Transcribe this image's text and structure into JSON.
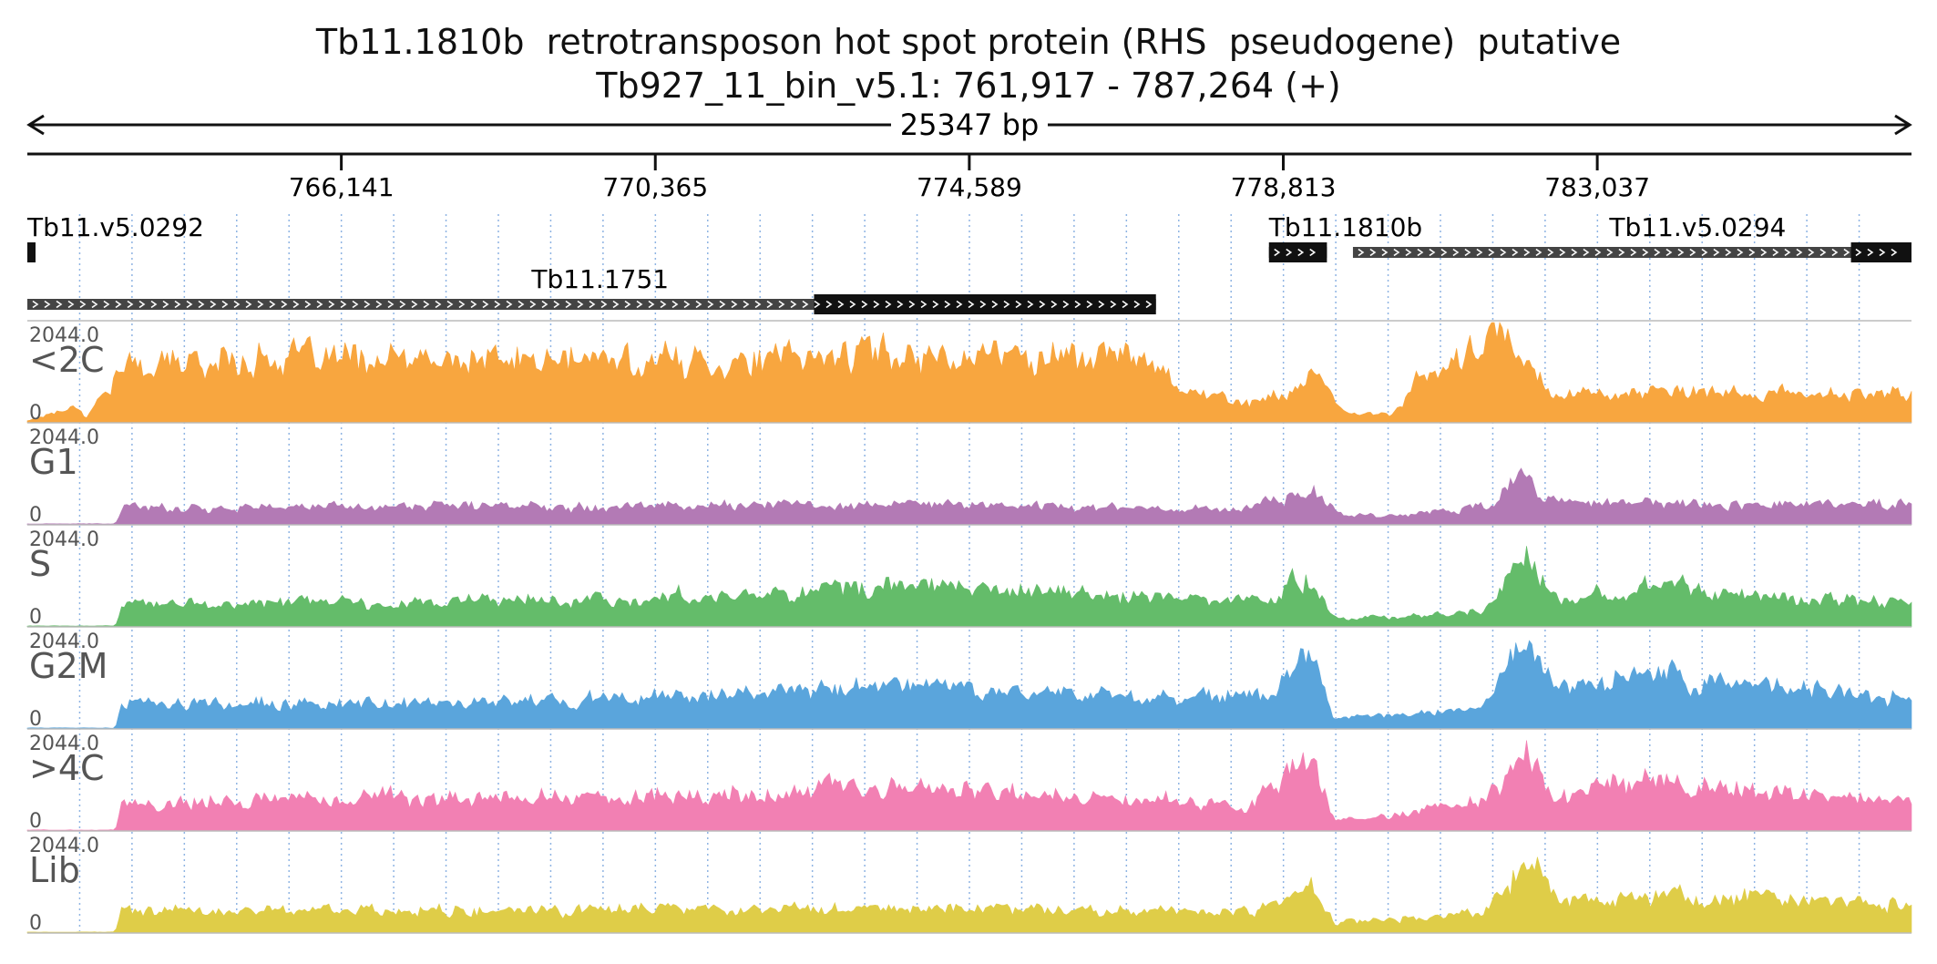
{
  "title": "Tb11.1810b  retrotransposon hot spot protein (RHS  pseudogene)  putative",
  "subtitle": "Tb927_11_bin_v5.1: 761,917 - 787,264 (+)",
  "chart_data": {
    "type": "area",
    "region_start": 761917,
    "region_end": 787264,
    "length_label": "25347 bp",
    "x_ticks": [
      766141,
      770365,
      774589,
      778813,
      783037
    ],
    "x_tick_labels": [
      "766,141",
      "770,365",
      "774,589",
      "778,813",
      "783,037"
    ],
    "genes": [
      {
        "name": "Tb11.v5.0292",
        "start": 761917,
        "end": 761990,
        "cds_start": 761917,
        "cds_end": 761990,
        "row": 0,
        "label_pos": 761917
      },
      {
        "name": "Tb11.1810b",
        "start": 778620,
        "end": 779400,
        "cds_start": 778620,
        "cds_end": 779400,
        "row": 0,
        "label_pos": 778620
      },
      {
        "name": "Tb11.v5.0294",
        "start": 779750,
        "end": 787264,
        "cds_start": 786450,
        "cds_end": 787264,
        "row": 0,
        "label_pos": 783200
      },
      {
        "name": "Tb11.1751",
        "start": 761917,
        "end": 777100,
        "cds_start": 772500,
        "cds_end": 777100,
        "row": 1,
        "label_pos": 768700
      }
    ],
    "tracks": [
      {
        "name": "<2C",
        "max_label": "2044.0",
        "zero_label": "0",
        "color": "#f8a63f",
        "baseline": 600,
        "noise": 0.35,
        "profile": [
          [
            761917,
            0.02
          ],
          [
            762600,
            0.18
          ],
          [
            762700,
            0.05
          ],
          [
            763200,
            0.55
          ],
          [
            765000,
            0.65
          ],
          [
            767500,
            0.6
          ],
          [
            768000,
            0.62
          ],
          [
            772000,
            0.62
          ],
          [
            773000,
            0.7
          ],
          [
            777000,
            0.66
          ],
          [
            777600,
            0.3
          ],
          [
            778400,
            0.2
          ],
          [
            778700,
            0.25
          ],
          [
            779200,
            0.45
          ],
          [
            779700,
            0.08
          ],
          [
            780300,
            0.1
          ],
          [
            780600,
            0.4
          ],
          [
            781200,
            0.6
          ],
          [
            781700,
            0.9
          ],
          [
            782200,
            0.5
          ],
          [
            782500,
            0.3
          ],
          [
            787264,
            0.28
          ]
        ]
      },
      {
        "name": "G1",
        "max_label": "2044.0",
        "zero_label": "0",
        "color": "#b37ab5",
        "baseline": 0,
        "noise": 0.35,
        "profile": [
          [
            761917,
            0.01
          ],
          [
            763100,
            0.01
          ],
          [
            763200,
            0.17
          ],
          [
            768000,
            0.19
          ],
          [
            772000,
            0.2
          ],
          [
            775000,
            0.2
          ],
          [
            777500,
            0.16
          ],
          [
            778300,
            0.16
          ],
          [
            778700,
            0.25
          ],
          [
            779300,
            0.32
          ],
          [
            779600,
            0.1
          ],
          [
            780500,
            0.1
          ],
          [
            781700,
            0.2
          ],
          [
            782000,
            0.55
          ],
          [
            782300,
            0.24
          ],
          [
            783000,
            0.22
          ],
          [
            787264,
            0.2
          ]
        ]
      },
      {
        "name": "S",
        "max_label": "2044.0",
        "zero_label": "0",
        "color": "#64bc6a",
        "baseline": 0,
        "noise": 0.35,
        "profile": [
          [
            761917,
            0.01
          ],
          [
            763100,
            0.01
          ],
          [
            763200,
            0.22
          ],
          [
            767500,
            0.25
          ],
          [
            771000,
            0.3
          ],
          [
            772500,
            0.38
          ],
          [
            774000,
            0.4
          ],
          [
            777000,
            0.3
          ],
          [
            778500,
            0.25
          ],
          [
            779200,
            0.52
          ],
          [
            779500,
            0.08
          ],
          [
            780500,
            0.1
          ],
          [
            781500,
            0.18
          ],
          [
            782100,
            0.65
          ],
          [
            782500,
            0.3
          ],
          [
            783600,
            0.42
          ],
          [
            787264,
            0.22
          ]
        ]
      },
      {
        "name": "G2M",
        "max_label": "2044.0",
        "zero_label": "0",
        "color": "#5aa5dc",
        "baseline": 0,
        "noise": 0.35,
        "profile": [
          [
            761917,
            0.01
          ],
          [
            763100,
            0.01
          ],
          [
            763200,
            0.25
          ],
          [
            767000,
            0.25
          ],
          [
            770000,
            0.3
          ],
          [
            772500,
            0.38
          ],
          [
            774000,
            0.45
          ],
          [
            777000,
            0.3
          ],
          [
            778700,
            0.35
          ],
          [
            779200,
            0.72
          ],
          [
            779500,
            0.1
          ],
          [
            780500,
            0.15
          ],
          [
            781500,
            0.2
          ],
          [
            782100,
            0.85
          ],
          [
            782500,
            0.4
          ],
          [
            783600,
            0.55
          ],
          [
            787264,
            0.3
          ]
        ]
      },
      {
        "name": ">4C",
        "max_label": "2044.0",
        "zero_label": "0",
        "color": "#f280b3",
        "baseline": 0,
        "noise": 0.35,
        "profile": [
          [
            761917,
            0.01
          ],
          [
            763100,
            0.01
          ],
          [
            763200,
            0.28
          ],
          [
            767000,
            0.35
          ],
          [
            770000,
            0.32
          ],
          [
            772500,
            0.4
          ],
          [
            774500,
            0.42
          ],
          [
            777000,
            0.3
          ],
          [
            778300,
            0.25
          ],
          [
            779200,
            0.72
          ],
          [
            779500,
            0.1
          ],
          [
            780500,
            0.18
          ],
          [
            781500,
            0.3
          ],
          [
            782100,
            0.8
          ],
          [
            782500,
            0.35
          ],
          [
            783600,
            0.5
          ],
          [
            787264,
            0.28
          ]
        ]
      },
      {
        "name": "Lib",
        "max_label": "2044.0",
        "zero_label": "0",
        "color": "#dfcd48",
        "baseline": 0,
        "noise": 0.35,
        "profile": [
          [
            761917,
            0.01
          ],
          [
            763100,
            0.01
          ],
          [
            763200,
            0.22
          ],
          [
            768000,
            0.22
          ],
          [
            772000,
            0.24
          ],
          [
            775000,
            0.25
          ],
          [
            777500,
            0.2
          ],
          [
            778500,
            0.22
          ],
          [
            779200,
            0.45
          ],
          [
            779500,
            0.1
          ],
          [
            780500,
            0.15
          ],
          [
            781500,
            0.2
          ],
          [
            782100,
            0.75
          ],
          [
            782500,
            0.3
          ],
          [
            783600,
            0.38
          ],
          [
            787264,
            0.3
          ]
        ]
      }
    ]
  }
}
